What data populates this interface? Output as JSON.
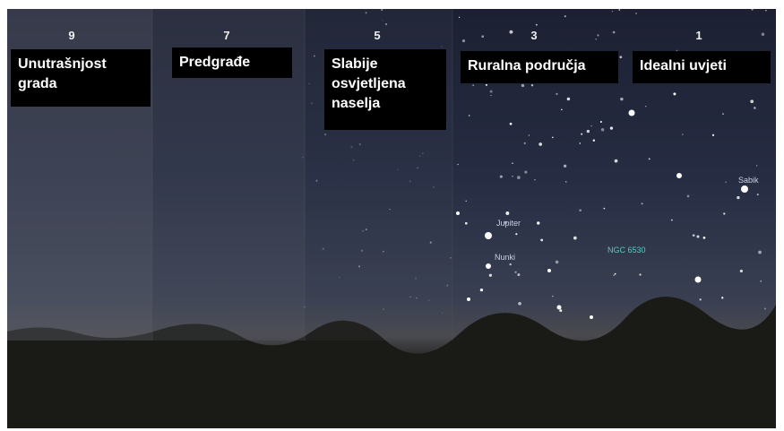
{
  "panels": [
    {
      "level": 9,
      "label": "Unutrašnjost grada"
    },
    {
      "level": 7,
      "label": "Predgrađe"
    },
    {
      "level": 5,
      "label": "Slabije osvjetljena naselja"
    },
    {
      "level": 3,
      "label": "Ruralna područja"
    },
    {
      "level": 1,
      "label": "Idealni uvjeti"
    }
  ],
  "sky_labels": [
    "Jupiter",
    "Nunki",
    "NGC 6530",
    "Sabik"
  ]
}
